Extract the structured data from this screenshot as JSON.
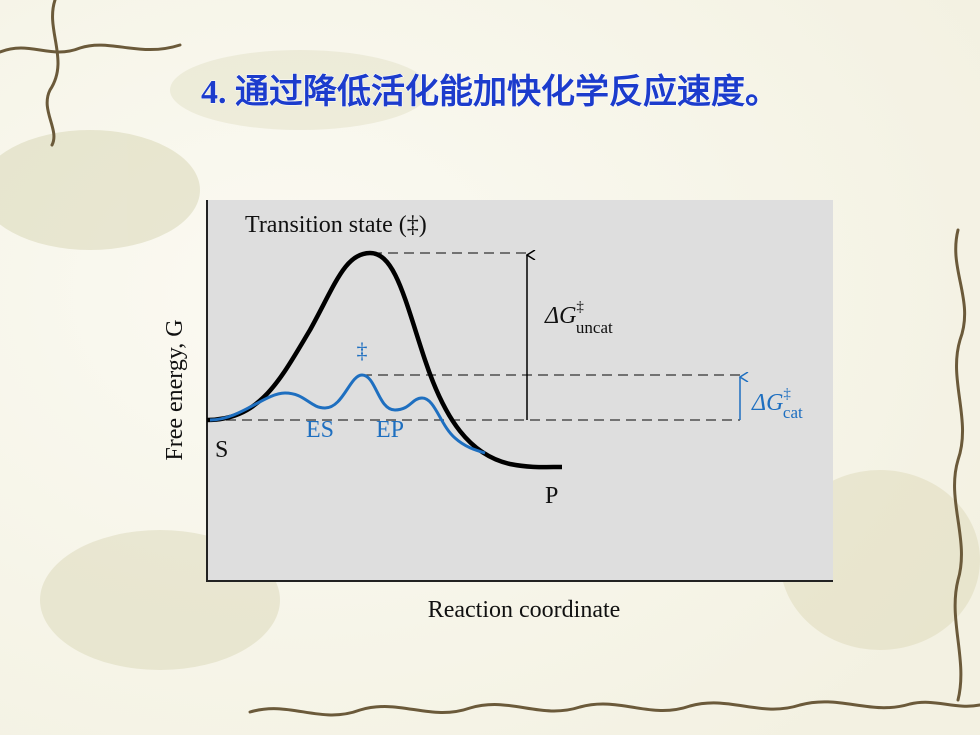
{
  "slide": {
    "title": "4. 通过降低活化能加快化学反应速度。"
  },
  "diagram": {
    "transition_state_label": "Transition state (‡)",
    "uncatalyzed": {
      "symbol": "ΔG",
      "superscript": "‡",
      "subscript": "uncat"
    },
    "catalyzed_peak_label": "‡",
    "intermediates": [
      "ES",
      "EP"
    ],
    "start_label": "S",
    "end_label": "P",
    "catalyzed": {
      "symbol": "ΔG",
      "superscript": "‡",
      "subscript": "cat"
    },
    "y_axis_label": "Free energy, G",
    "x_axis_label": "Reaction coordinate"
  }
}
